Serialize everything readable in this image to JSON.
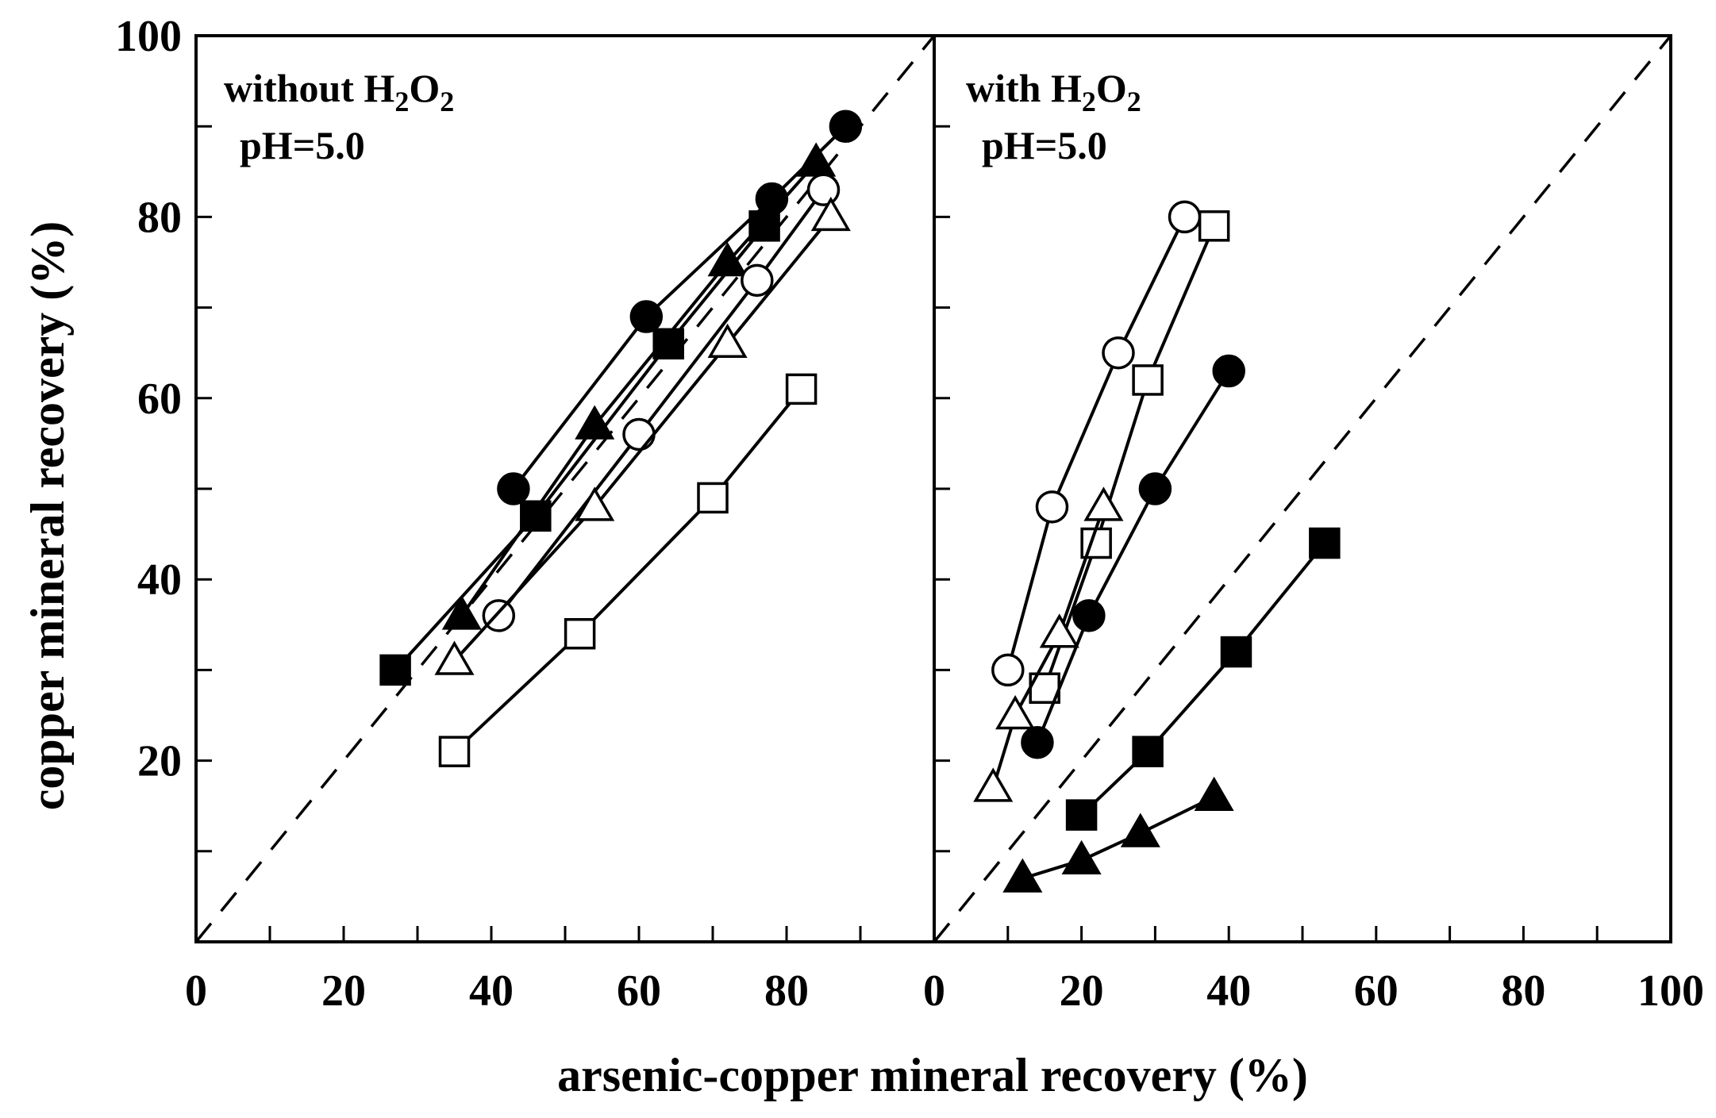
{
  "chart_data": [
    {
      "type": "scatter",
      "panel": "left",
      "annotation": {
        "text": "without H",
        "sub1": "2",
        "mid": "O",
        "sub2": "2",
        "ph": "pH=5.0"
      },
      "xlabel": "arsenic-copper mineral recovery (%)",
      "ylabel": "copper mineral recovery (%)",
      "xlim": [
        0,
        100
      ],
      "ylim": [
        0,
        100
      ],
      "xticks": [
        "0",
        "20",
        "40",
        "60",
        "80"
      ],
      "yticks": [
        "20",
        "40",
        "60",
        "80",
        "100"
      ],
      "reference_line": {
        "style": "dashed",
        "points": [
          [
            0,
            0
          ],
          [
            100,
            100
          ]
        ]
      },
      "series": [
        {
          "marker": "square",
          "filled": true,
          "points": [
            [
              27,
              30
            ],
            [
              46,
              47
            ],
            [
              64,
              66
            ],
            [
              77,
              79
            ]
          ]
        },
        {
          "marker": "circle",
          "filled": true,
          "points": [
            [
              43,
              50
            ],
            [
              61,
              69
            ],
            [
              78,
              82
            ],
            [
              88,
              90
            ]
          ]
        },
        {
          "marker": "triangle",
          "filled": true,
          "points": [
            [
              36,
              36
            ],
            [
              54,
              57
            ],
            [
              72,
              75
            ],
            [
              84,
              86
            ]
          ]
        },
        {
          "marker": "circle",
          "filled": false,
          "points": [
            [
              41,
              36
            ],
            [
              60,
              56
            ],
            [
              76,
              73
            ],
            [
              85,
              83
            ]
          ]
        },
        {
          "marker": "triangle",
          "filled": false,
          "points": [
            [
              35,
              31
            ],
            [
              54,
              48
            ],
            [
              72,
              66
            ],
            [
              86,
              80
            ]
          ]
        },
        {
          "marker": "square",
          "filled": false,
          "points": [
            [
              35,
              21
            ],
            [
              52,
              34
            ],
            [
              70,
              49
            ],
            [
              82,
              61
            ]
          ]
        }
      ]
    },
    {
      "type": "scatter",
      "panel": "right",
      "annotation": {
        "text": "with H",
        "sub1": "2",
        "mid": "O",
        "sub2": "2",
        "ph": "pH=5.0"
      },
      "xlabel": "arsenic-copper mineral recovery (%)",
      "ylabel": "",
      "xlim": [
        0,
        100
      ],
      "ylim": [
        0,
        100
      ],
      "xticks": [
        "0",
        "20",
        "40",
        "60",
        "80",
        "100"
      ],
      "yticks": [],
      "reference_line": {
        "style": "dashed",
        "points": [
          [
            0,
            0
          ],
          [
            100,
            100
          ]
        ]
      },
      "series": [
        {
          "marker": "circle",
          "filled": false,
          "points": [
            [
              10,
              30
            ],
            [
              16,
              48
            ],
            [
              25,
              65
            ],
            [
              34,
              80
            ]
          ]
        },
        {
          "marker": "square",
          "filled": false,
          "points": [
            [
              15,
              28
            ],
            [
              22,
              44
            ],
            [
              29,
              62
            ],
            [
              38,
              79
            ]
          ]
        },
        {
          "marker": "triangle",
          "filled": false,
          "points": [
            [
              8,
              17
            ],
            [
              11,
              25
            ],
            [
              17,
              34
            ],
            [
              23,
              48
            ]
          ]
        },
        {
          "marker": "circle",
          "filled": true,
          "points": [
            [
              14,
              22
            ],
            [
              21,
              36
            ],
            [
              30,
              50
            ],
            [
              40,
              63
            ]
          ]
        },
        {
          "marker": "square",
          "filled": true,
          "points": [
            [
              20,
              14
            ],
            [
              29,
              21
            ],
            [
              41,
              32
            ],
            [
              53,
              44
            ]
          ]
        },
        {
          "marker": "triangle",
          "filled": true,
          "points": [
            [
              12,
              7
            ],
            [
              20,
              9
            ],
            [
              28,
              12
            ],
            [
              38,
              16
            ]
          ]
        }
      ]
    }
  ]
}
